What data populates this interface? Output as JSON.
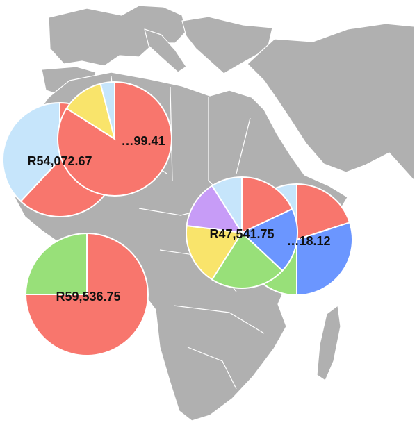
{
  "chart_data": {
    "type": "pie",
    "pies": [
      {
        "label": "R54,072.67",
        "slices": [
          {
            "value": 0.62,
            "color": "#f8766d"
          },
          {
            "value": 0.38,
            "color": "#c6e5fb"
          }
        ]
      },
      {
        "label": "…99.41",
        "slices": [
          {
            "value": 0.84,
            "color": "#f8766d"
          },
          {
            "value": 0.12,
            "color": "#f9e46b"
          },
          {
            "value": 0.04,
            "color": "#c6e5fb"
          }
        ]
      },
      {
        "label": "R59,536.75",
        "slices": [
          {
            "value": 0.75,
            "color": "#f8766d"
          },
          {
            "value": 0.25,
            "color": "#98e079"
          }
        ]
      },
      {
        "label": "R47,541.75",
        "slices": [
          {
            "value": 0.18,
            "color": "#f8766d"
          },
          {
            "value": 0.19,
            "color": "#6b96ff"
          },
          {
            "value": 0.22,
            "color": "#98e079"
          },
          {
            "value": 0.18,
            "color": "#f9e46b"
          },
          {
            "value": 0.14,
            "color": "#c79cf7"
          },
          {
            "value": 0.09,
            "color": "#c6e5fb"
          }
        ]
      },
      {
        "label": "…18.12",
        "slices": [
          {
            "value": 0.2,
            "color": "#f8766d"
          },
          {
            "value": 0.3,
            "color": "#6b96ff"
          },
          {
            "value": 0.3,
            "color": "#98e079"
          },
          {
            "value": 0.2,
            "color": "#c6e5fb"
          }
        ]
      }
    ]
  }
}
